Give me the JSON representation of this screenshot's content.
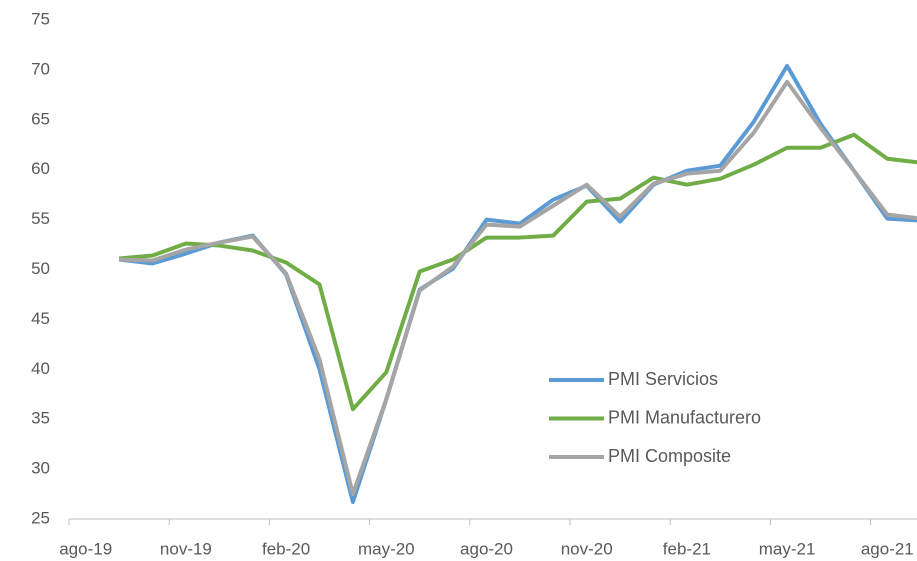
{
  "chart_data": {
    "type": "line",
    "categories": [
      "ago-19",
      null,
      null,
      "nov-19",
      null,
      null,
      "feb-20",
      null,
      null,
      "may-20",
      null,
      null,
      "ago-20",
      null,
      null,
      "nov-20",
      null,
      null,
      "feb-21",
      null,
      null,
      "may-21",
      null,
      null,
      "ago-21",
      null
    ],
    "series": [
      {
        "name": "PMI Servicios",
        "color": "#5b9bd5",
        "values": [
          null,
          51.0,
          50.6,
          51.6,
          52.7,
          53.4,
          49.5,
          40.0,
          26.7,
          37.0,
          48.0,
          50.1,
          55.0,
          54.6,
          57.0,
          58.4,
          54.8,
          58.5,
          59.9,
          60.4,
          64.8,
          70.4,
          64.6,
          59.9,
          55.1,
          54.9
        ]
      },
      {
        "name": "PMI Manufacturero",
        "color": "#70ad47",
        "values": [
          null,
          51.1,
          51.4,
          52.6,
          52.4,
          51.9,
          50.7,
          48.5,
          36.0,
          39.7,
          49.8,
          51.0,
          53.2,
          53.2,
          53.4,
          56.8,
          57.1,
          59.2,
          58.5,
          59.1,
          60.5,
          62.2,
          62.2,
          63.5,
          61.1,
          60.7
        ]
      },
      {
        "name": "PMI Composite",
        "color": "#a5a5a5",
        "values": [
          null,
          51.0,
          50.9,
          52.0,
          52.7,
          53.3,
          49.6,
          41.0,
          27.5,
          37.0,
          47.9,
          50.3,
          54.5,
          54.3,
          56.4,
          58.5,
          55.3,
          58.6,
          59.6,
          59.9,
          63.7,
          68.8,
          64.2,
          59.9,
          55.5,
          55.1
        ]
      }
    ],
    "ylim": [
      25,
      75
    ],
    "yticks": [
      25,
      30,
      35,
      40,
      45,
      50,
      55,
      60,
      65,
      70,
      75
    ],
    "grid": false,
    "legend": "lower-right"
  }
}
